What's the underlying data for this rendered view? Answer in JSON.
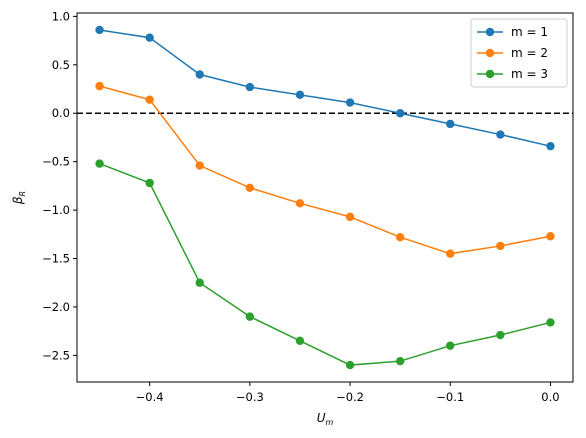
{
  "chart_data": {
    "type": "line",
    "x": [
      -0.45,
      -0.4,
      -0.35,
      -0.3,
      -0.25,
      -0.2,
      -0.15,
      -0.1,
      -0.05,
      0.0
    ],
    "series": [
      {
        "name": "m = 1",
        "color": "#1f77b4",
        "values": [
          0.86,
          0.78,
          0.4,
          0.27,
          0.19,
          0.11,
          0.0,
          -0.11,
          -0.22,
          -0.34
        ]
      },
      {
        "name": "m = 2",
        "color": "#ff7f0e",
        "values": [
          0.28,
          0.14,
          -0.54,
          -0.77,
          -0.93,
          -1.07,
          -1.28,
          -1.45,
          -1.37,
          -1.27
        ]
      },
      {
        "name": "m = 3",
        "color": "#2ca02c",
        "values": [
          -0.52,
          -0.72,
          -1.75,
          -2.1,
          -2.35,
          -2.6,
          -2.56,
          -2.4,
          -2.29,
          -2.16
        ]
      }
    ],
    "xlim": [
      -0.4725,
      0.0225
    ],
    "ylim": [
      -2.775,
      1.035
    ],
    "xticks": [
      -0.4,
      -0.3,
      -0.2,
      -0.1,
      0.0
    ],
    "xtick_labels": [
      "−0.4",
      "−0.3",
      "−0.2",
      "−0.1",
      "0.0"
    ],
    "yticks": [
      1.0,
      0.5,
      0.0,
      -0.5,
      -1.0,
      -1.5,
      -2.0,
      -2.5
    ],
    "ytick_labels": [
      "1.0",
      "0.5",
      "0.0",
      "−0.5",
      "−1.0",
      "−1.5",
      "−2.0",
      "−2.5"
    ],
    "hline": {
      "y": 0.0,
      "style": "dashed",
      "color": "#000000"
    },
    "xlabel_main": "U",
    "xlabel_sub": "m",
    "ylabel_main": "β",
    "ylabel_sub": "R",
    "legend_position": "top-right",
    "grid": false
  }
}
